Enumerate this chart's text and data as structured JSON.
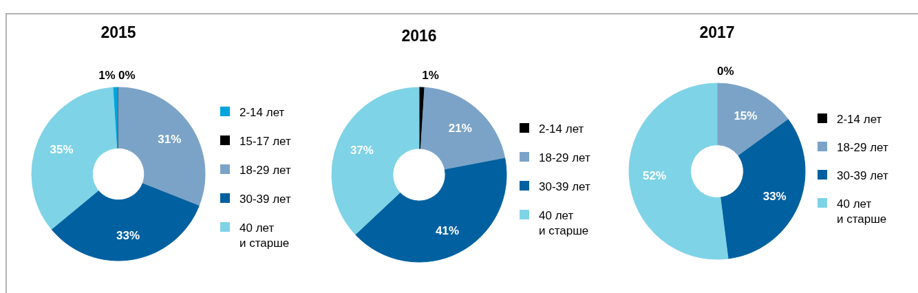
{
  "chart_data": [
    {
      "type": "donut",
      "title": "2015",
      "categories": [
        "2-14 лет",
        "15-17 лет",
        "18-29 лет",
        "30-39 лет",
        "40 лет\nи старше"
      ],
      "values": [
        1,
        0,
        31,
        33,
        35
      ],
      "colors": [
        "#00a3dd",
        "#000000",
        "#7ba3c7",
        "#0060a0",
        "#7fd3e6"
      ],
      "value_labels": [
        "1%",
        "0%",
        "31%",
        "33%",
        "35%"
      ],
      "legend": "right"
    },
    {
      "type": "donut",
      "title": "2016",
      "categories": [
        "2-14 лет",
        "18-29 лет",
        "30-39 лет",
        "40 лет\nи старше"
      ],
      "values": [
        1,
        21,
        41,
        37
      ],
      "colors": [
        "#000000",
        "#7ba3c7",
        "#0060a0",
        "#7fd3e6"
      ],
      "value_labels": [
        "1%",
        "21%",
        "41%",
        "37%"
      ],
      "legend": "right"
    },
    {
      "type": "donut",
      "title": "2017",
      "categories": [
        "2-14 лет",
        "18-29 лет",
        "30-39 лет",
        "40 лет\nи старше"
      ],
      "values": [
        0,
        15,
        33,
        52
      ],
      "colors": [
        "#000000",
        "#7ba3c7",
        "#0060a0",
        "#7fd3e6"
      ],
      "value_labels": [
        "0%",
        "15%",
        "33%",
        "52%"
      ],
      "legend": "right"
    }
  ]
}
